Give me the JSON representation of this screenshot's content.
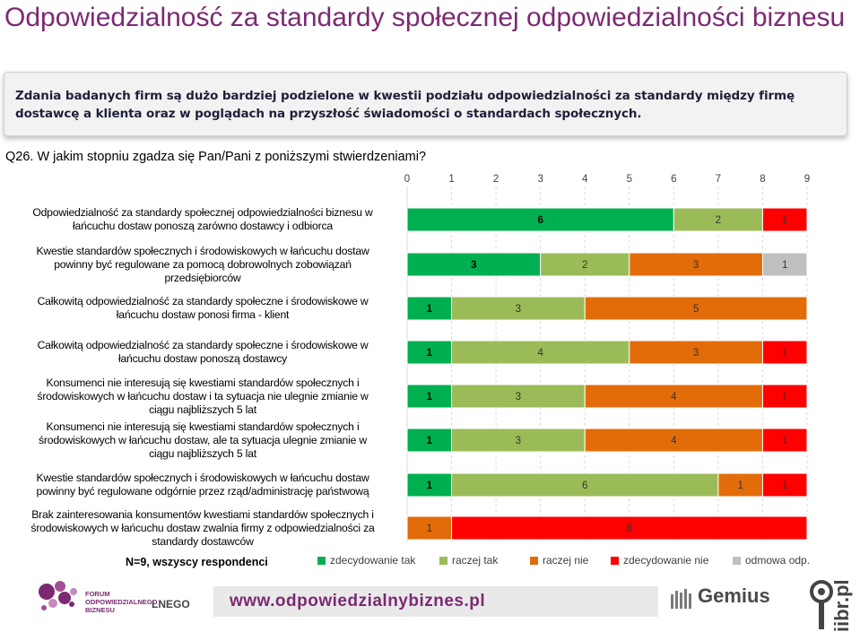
{
  "slide": {
    "title": "Odpowiedzialność za standardy społecznej odpowiedzialności biznesu",
    "summary": "Zdania badanych firm są dużo bardziej podzielone w kwestii podziału odpowiedzialności za standardy między firmę dostawcę a klienta oraz w poglądach na przyszłość świadomości o standardach społecznych.",
    "question": "Q26. W jakim stopniu zgadza się Pan/Pani z poniższymi stwierdzeniami?",
    "sample_note": "N=9, wszyscy respondenci",
    "footer": {
      "url": "www.odpowiedzialnybiznes.pl",
      "forum_logo_text": [
        "FORUM",
        "ODPOWIEDZIALNEGO",
        "BIZNESU"
      ],
      "forum_tail": "LNEGO",
      "gemius": "Gemius",
      "iibr": "iibr.pl"
    }
  },
  "chart_data": {
    "type": "bar",
    "orientation": "horizontal",
    "stacked": true,
    "xlim": [
      0,
      9
    ],
    "xticks": [
      "0",
      "1",
      "2",
      "3",
      "4",
      "5",
      "6",
      "7",
      "8",
      "9"
    ],
    "axis_position": "top",
    "legend_position": "bottom",
    "categories": [
      "Odpowiedzialność za standardy społecznej odpowiedzialności biznesu w łańcuchu dostaw ponoszą zarówno dostawcy i odbiorca",
      "Kwestie standardów społecznych i środowiskowych w łańcuchu dostaw powinny być regulowane za pomocą dobrowolnych zobowiązań przedsiębiorców",
      "Całkowitą odpowiedzialność za standardy społeczne i środowiskowe w łańcuchu dostaw ponosi firma - klient",
      "Całkowitą odpowiedzialność za standardy społeczne i środowiskowe w łańcuchu dostaw ponoszą dostawcy",
      "Konsumenci nie interesują się kwestiami standardów społecznych i środowiskowych w łańcuchu dostaw i ta sytuacja nie ulegnie zmianie w ciągu najbliższych 5 lat",
      "Konsumenci nie interesują się kwestiami standardów społecznych i środowiskowych w łańcuchu dostaw, ale ta sytuacja ulegnie zmianie w ciągu najbliższych 5 lat",
      "Kwestie standardów społecznych i środowiskowych w łańcuchu dostaw powinny być regulowane odgórnie przez rząd/administrację państwową",
      "Brak zainteresowania konsumentów kwestiami standardów społecznych i środowiskowych w łańcuchu dostaw zwalnia firmy z odpowiedzialności za standardy dostawców"
    ],
    "label_lines": [
      [
        "Odpowiedzialność za standardy społecznej odpowiedzialności biznesu w",
        "łańcuchu dostaw ponoszą zarówno dostawcy i odbiorca"
      ],
      [
        "Kwestie standardów społecznych i środowiskowych w łańcuchu dostaw",
        "powinny być regulowane za pomocą dobrowolnych zobowiązań",
        "przedsiębiorców"
      ],
      [
        "Całkowitą odpowiedzialność za standardy społeczne i środowiskowe w",
        "łańcuchu dostaw ponosi firma - klient"
      ],
      [
        "Całkowitą odpowiedzialność za standardy społeczne i środowiskowe w",
        "łańcuchu dostaw ponoszą dostawcy"
      ],
      [
        "Konsumenci nie interesują się kwestiami standardów społecznych i",
        "środowiskowych w łańcuchu dostaw i ta sytuacja nie ulegnie zmianie w",
        "ciągu najbliższych 5 lat"
      ],
      [
        "Konsumenci nie interesują się kwestiami standardów społecznych i",
        "środowiskowych w łańcuchu dostaw, ale ta sytuacja ulegnie zmianie w",
        "ciągu najbliższych 5 lat"
      ],
      [
        "Kwestie standardów społecznych i środowiskowych w łańcuchu dostaw",
        "powinny być regulowane odgórnie przez rząd/administrację państwową"
      ],
      [
        "Brak zainteresowania konsumentów kwestiami standardów społecznych i",
        "środowiskowych w łańcuchu dostaw zwalnia firmy z odpowiedzialności za",
        "standardy dostawców"
      ]
    ],
    "series": [
      {
        "name": "zdecydowanie tak",
        "color": "#00b050",
        "values": [
          6,
          3,
          1,
          1,
          1,
          1,
          1,
          0
        ]
      },
      {
        "name": "raczej tak",
        "color": "#9bbb59",
        "values": [
          2,
          2,
          3,
          4,
          3,
          3,
          6,
          0
        ]
      },
      {
        "name": "raczej nie",
        "color": "#e36c0a",
        "values": [
          0,
          3,
          5,
          3,
          4,
          4,
          1,
          1
        ]
      },
      {
        "name": "zdecydowanie nie",
        "color": "#ff0000",
        "values": [
          1,
          0,
          0,
          1,
          1,
          1,
          1,
          8
        ]
      },
      {
        "name": "odmowa odp.",
        "color": "#bfbfbf",
        "values": [
          0,
          1,
          0,
          0,
          0,
          0,
          0,
          0
        ]
      }
    ],
    "grid": "vertical dashed"
  }
}
